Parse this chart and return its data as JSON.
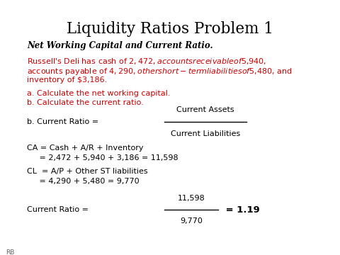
{
  "title": "Liquidity Ratios Problem 1",
  "subtitle": "Net Working Capital and Current Ratio.",
  "problem_text_1": "Russell's Deli has cash of $2,472, accounts receivable of $5,940,",
  "problem_text_2": "accounts payable of $4,290, other short-term liabilities of $5,480, and",
  "problem_text_3": "inventory of $3,186.",
  "question_1": "a. Calculate the net working capital.",
  "question_2": "b. Calculate the current ratio.",
  "formula_label": "b. Current Ratio = ",
  "formula_numerator": "Current Assets",
  "formula_denominator": "Current Liabilities",
  "ca_line1": "CA = Cash + A/R + Inventory",
  "ca_line2": "     = 2,472 + 5,940 + 3,186 = 11,598",
  "cl_line1": "CL  = A/P + Other ST liabilities",
  "cl_line2": "     = 4,290 + 5,480 = 9,770",
  "result_label": "Current Ratio = ",
  "result_numerator": "11,598",
  "result_denominator": "9,770",
  "result_value": " = 1.19",
  "bg_color": "#ffffff",
  "title_color": "#000000",
  "subtitle_color": "#000000",
  "problem_color": "#cc0000",
  "question_color": "#cc0000",
  "body_color": "#000000",
  "rb_color": "#666666"
}
